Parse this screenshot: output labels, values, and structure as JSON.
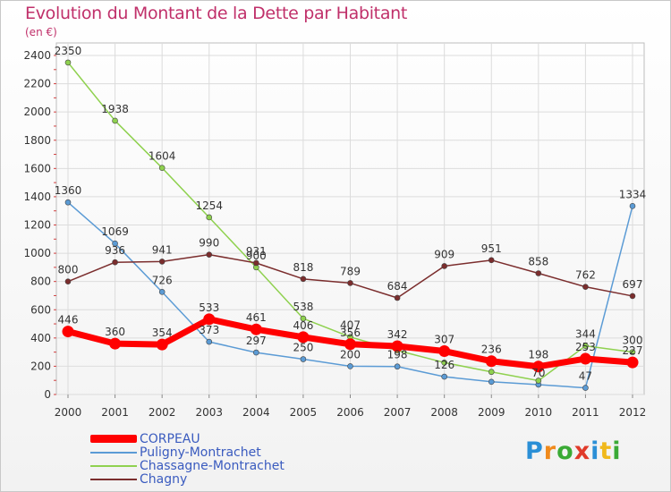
{
  "header": {
    "title": "Evolution du Montant de la Dette par Habitant",
    "subtitle": "(en €)"
  },
  "logo": {
    "letters": [
      "P",
      "r",
      "o",
      "x",
      "i",
      "t",
      "i"
    ],
    "colors": [
      "#2a8fd6",
      "#f08a1c",
      "#3aaa35",
      "#e03a2a",
      "#2a8fd6",
      "#f0b81c",
      "#3aaa35"
    ]
  },
  "chart_data": {
    "type": "line",
    "title": "Evolution du Montant de la Dette par Habitant",
    "ylabel": "(en €)",
    "x": [
      "2000",
      "2001",
      "2002",
      "2003",
      "2004",
      "2005",
      "2006",
      "2007",
      "2008",
      "2009",
      "2010",
      "2011",
      "2012"
    ],
    "ylim": [
      0,
      2400
    ],
    "yticks": [
      0,
      200,
      400,
      600,
      800,
      1000,
      1200,
      1400,
      1600,
      1800,
      2000,
      2200,
      2400
    ],
    "grid": true,
    "legend_position": "bottom-left",
    "series": [
      {
        "name": "Puligny-Montrachet",
        "color": "#5b9bd5",
        "values": [
          1360,
          1069,
          726,
          373,
          297,
          250,
          200,
          198,
          126,
          90,
          70,
          47,
          1334
        ],
        "labels": [
          "1360",
          "1069",
          "726",
          "373",
          "297",
          "250",
          "200",
          "198",
          "126",
          "",
          "70",
          "47",
          "1334"
        ]
      },
      {
        "name": "Chassagne-Montrachet",
        "color": "#8fd14f",
        "values": [
          2350,
          1938,
          1604,
          1254,
          900,
          538,
          407,
          312,
          226,
          160,
          98,
          344,
          300
        ],
        "labels": [
          "2350",
          "1938",
          "1604",
          "1254",
          "900",
          "538",
          "407",
          "",
          "",
          "",
          "",
          "344",
          "300"
        ]
      },
      {
        "name": "Chagny",
        "color": "#7b2d2d",
        "values": [
          800,
          936,
          941,
          990,
          931,
          818,
          789,
          684,
          909,
          951,
          858,
          762,
          697
        ],
        "labels": [
          "800",
          "936",
          "941",
          "990",
          "931",
          "818",
          "789",
          "684",
          "909",
          "951",
          "858",
          "762",
          "697"
        ]
      },
      {
        "name": "CORPEAU",
        "color": "#ff0000",
        "values": [
          446,
          360,
          354,
          533,
          461,
          406,
          356,
          342,
          307,
          236,
          198,
          253,
          227
        ],
        "labels": [
          "446",
          "360",
          "354",
          "533",
          "461",
          "406",
          "356",
          "342",
          "307",
          "236",
          "198",
          "253",
          "227"
        ]
      }
    ]
  }
}
